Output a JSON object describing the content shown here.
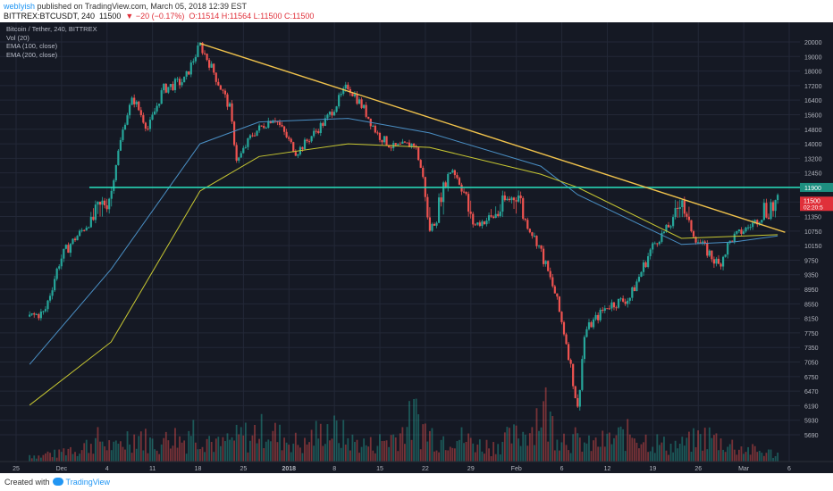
{
  "header": {
    "publisher": "webIyish",
    "published_text": " published on TradingView.com, March 05, 2018 12:39 EST",
    "symbol": "BITTREX:BTCUSDT, 240",
    "last": "11500",
    "change": "▼ −20 (−0.17%)",
    "ohlc": "O:11514 H:11564 L:11500 C:11500"
  },
  "legend": [
    "Bitcoin / Tether, 240, BITTREX",
    "Vol (20)",
    "EMA (100, close)",
    "EMA (200, close)"
  ],
  "footer": {
    "created_with": "Created with",
    "brand": "TradingView"
  },
  "colors": {
    "background": "#151924",
    "up": "#26a69a",
    "down": "#ef5350",
    "trendline": "#f0c24c",
    "support": "#26d4b4",
    "ema100": "#4a8fc4",
    "ema200": "#c8c832",
    "axis_text": "#b2b5be",
    "price_badge": "#e0303a"
  },
  "chart_data": {
    "type": "candlestick",
    "title": "Bitcoin / Tether, 240, BITTREX",
    "y_ticks": [
      20000,
      19000,
      18000,
      17200,
      16400,
      15600,
      14800,
      14000,
      13200,
      12450,
      11900,
      11500,
      11350,
      10750,
      10150,
      9750,
      9350,
      8950,
      8550,
      8150,
      7750,
      7350,
      7050,
      6750,
      6470,
      6190,
      5930,
      5690
    ],
    "x_ticks": [
      "25",
      "Dec",
      "4",
      "11",
      "18",
      "25",
      "2018",
      "8",
      "15",
      "22",
      "29",
      "Feb",
      "6",
      "12",
      "19",
      "26",
      "Mar",
      "6"
    ],
    "price_labels": {
      "last": "11500",
      "timer": "02:20:5",
      "support": "11900"
    },
    "price_path": [
      [
        "2017-11-24",
        8200
      ],
      [
        "2017-11-26",
        8300
      ],
      [
        "2017-11-28",
        9700
      ],
      [
        "2017-11-30",
        10400
      ],
      [
        "2017-12-02",
        11100
      ],
      [
        "2017-12-05",
        11700
      ],
      [
        "2017-12-07",
        15500
      ],
      [
        "2017-12-08",
        16500
      ],
      [
        "2017-12-10",
        14800
      ],
      [
        "2017-12-12",
        17000
      ],
      [
        "2017-12-15",
        17500
      ],
      [
        "2017-12-17",
        19800
      ],
      [
        "2017-12-19",
        17800
      ],
      [
        "2017-12-21",
        16000
      ],
      [
        "2017-12-22",
        13000
      ],
      [
        "2017-12-24",
        14500
      ],
      [
        "2017-12-27",
        15500
      ],
      [
        "2017-12-30",
        13500
      ],
      [
        "2018-01-03",
        15300
      ],
      [
        "2018-01-06",
        17200
      ],
      [
        "2018-01-08",
        16000
      ],
      [
        "2018-01-10",
        14500
      ],
      [
        "2018-01-12",
        13800
      ],
      [
        "2018-01-15",
        14000
      ],
      [
        "2018-01-17",
        10800
      ],
      [
        "2018-01-18",
        11300
      ],
      [
        "2018-01-20",
        12700
      ],
      [
        "2018-01-23",
        11000
      ],
      [
        "2018-01-27",
        11500
      ],
      [
        "2018-01-29",
        11700
      ],
      [
        "2018-02-01",
        10000
      ],
      [
        "2018-02-03",
        8800
      ],
      [
        "2018-02-05",
        7000
      ],
      [
        "2018-02-06",
        6100
      ],
      [
        "2018-02-07",
        7800
      ],
      [
        "2018-02-10",
        8500
      ],
      [
        "2018-02-13",
        8700
      ],
      [
        "2018-02-16",
        10100
      ],
      [
        "2018-02-19",
        11200
      ],
      [
        "2018-02-20",
        11700
      ],
      [
        "2018-02-22",
        10400
      ],
      [
        "2018-02-25",
        9600
      ],
      [
        "2018-02-27",
        10500
      ],
      [
        "2018-03-01",
        10900
      ],
      [
        "2018-03-03",
        11400
      ],
      [
        "2018-03-05",
        11500
      ]
    ],
    "ema100": [
      [
        "2017-11-24",
        7000
      ],
      [
        "2017-12-05",
        9500
      ],
      [
        "2017-12-17",
        14000
      ],
      [
        "2017-12-25",
        15200
      ],
      [
        "2018-01-06",
        15400
      ],
      [
        "2018-01-17",
        14600
      ],
      [
        "2018-02-01",
        12800
      ],
      [
        "2018-02-06",
        11700
      ],
      [
        "2018-02-20",
        10200
      ],
      [
        "2018-02-27",
        10300
      ],
      [
        "2018-03-05",
        10550
      ]
    ],
    "ema200": [
      [
        "2017-11-24",
        6200
      ],
      [
        "2017-12-05",
        7500
      ],
      [
        "2017-12-17",
        11800
      ],
      [
        "2017-12-25",
        13300
      ],
      [
        "2018-01-06",
        14000
      ],
      [
        "2018-01-17",
        13800
      ],
      [
        "2018-02-01",
        12400
      ],
      [
        "2018-02-06",
        11900
      ],
      [
        "2018-02-20",
        10450
      ],
      [
        "2018-03-05",
        10600
      ]
    ],
    "trendline": [
      [
        "2017-12-17",
        19900
      ],
      [
        "2018-03-06",
        10700
      ]
    ],
    "support_level": 11900,
    "volume": {
      "values": [
        0.12,
        0.1,
        0.15,
        0.14,
        0.2,
        0.25,
        0.22,
        0.3,
        0.35,
        0.4,
        0.3,
        0.25,
        0.35,
        0.45,
        0.5,
        0.4,
        0.35,
        0.3,
        0.55,
        0.45,
        0.4,
        0.6,
        0.5,
        0.45,
        0.35,
        0.3,
        0.38,
        0.42,
        0.48,
        0.4,
        0.55,
        0.62,
        0.5,
        0.45,
        0.4,
        0.35,
        0.3,
        0.45,
        0.5,
        0.62,
        0.55,
        0.48,
        0.4,
        0.35,
        0.32,
        0.3,
        0.36,
        0.4,
        0.45,
        0.55,
        0.7,
        0.8,
        0.6,
        0.5,
        0.4,
        0.45,
        0.5,
        0.42,
        0.38,
        0.35,
        0.3,
        0.28,
        0.35,
        0.4,
        0.45,
        0.5,
        0.62,
        0.85,
        0.95,
        0.7,
        0.55,
        0.45,
        0.4,
        0.35,
        0.3,
        0.32,
        0.36,
        0.4,
        0.45,
        0.48,
        0.52,
        0.45,
        0.4,
        0.35,
        0.3,
        0.28,
        0.3,
        0.34,
        0.38,
        0.42,
        0.45,
        0.4,
        0.35,
        0.3,
        0.25,
        0.22,
        0.2,
        0.18,
        0.16,
        0.14
      ]
    }
  }
}
